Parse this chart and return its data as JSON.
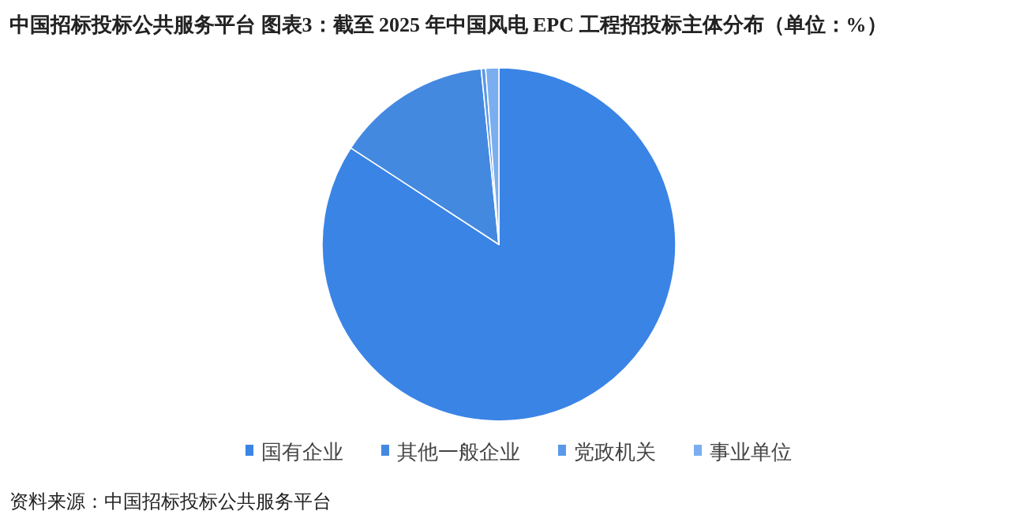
{
  "chart_data": {
    "type": "pie",
    "title": "中国招标投标公共服务平台  图表3：截至 2025 年中国风电 EPC 工程招投标主体分布（单位：%）",
    "categories": [
      "国有企业",
      "其他一般企业",
      "党政机关",
      "事业单位"
    ],
    "values": [
      84.2,
      14.2,
      0.4,
      1.2
    ],
    "colors": [
      "#3a84e6",
      "#4489e0",
      "#5a98ea",
      "#7aaef0"
    ],
    "legend": "bottom",
    "annotations": [
      "资料来源：中国招标投标公共服务平台"
    ]
  }
}
